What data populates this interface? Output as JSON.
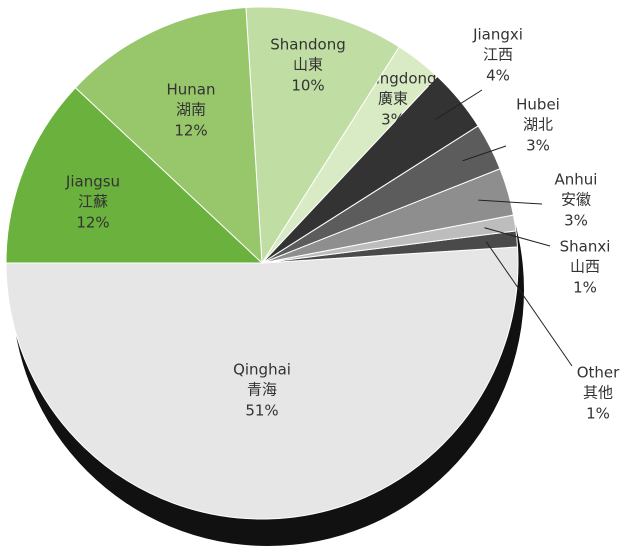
{
  "chart_data": {
    "type": "pie",
    "categories": [
      "Qinghai",
      "Other",
      "Shanxi",
      "Anhui",
      "Hubei",
      "Jiangxi",
      "Guangdong",
      "Shandong",
      "Hunan",
      "Jiangsu"
    ],
    "categories_zh": [
      "青海",
      "其他",
      "山西",
      "安徽",
      "湖北",
      "江西",
      "廣東",
      "山東",
      "湖南",
      "江蘇"
    ],
    "values": [
      51,
      1,
      1,
      3,
      3,
      4,
      3,
      10,
      12,
      12
    ],
    "value_labels": [
      "51%",
      "1%",
      "1%",
      "3%",
      "3%",
      "4%",
      "3%",
      "10%",
      "12%",
      "12%"
    ],
    "colors": [
      "#e6e6e6",
      "#4a4a4a",
      "#bdbdbd",
      "#8e8e8e",
      "#5c5c5c",
      "#333333",
      "#d8ebc4",
      "#c0dea3",
      "#97c66b",
      "#6ab23d"
    ]
  }
}
